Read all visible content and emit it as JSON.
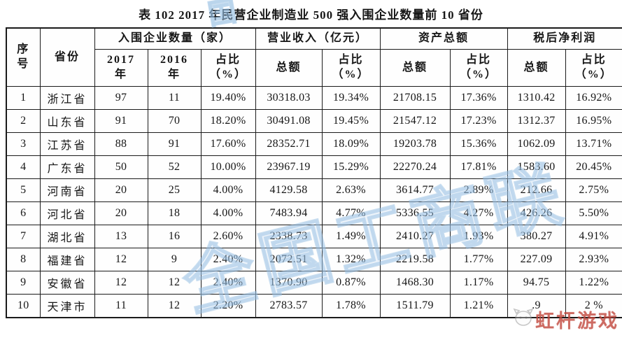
{
  "title": "表 102  2017 年民营企业制造业 500 强入围企业数量前 10 省份",
  "table": {
    "header_groups": {
      "index": "序\n号",
      "province": "省份",
      "count": "入围企业数量（家）",
      "revenue": "营业收入（亿元）",
      "assets": "资产总额",
      "profit": "税后净利润"
    },
    "subheaders": {
      "y2017": "2017\n年",
      "y2016": "2016\n年",
      "share": "占比\n（%）",
      "total_a": "总额",
      "total_b": "总额",
      "total_c": "总额"
    },
    "rows": [
      [
        "1",
        "浙江省",
        "97",
        "11",
        "19.40%",
        "30318.03",
        "19.34%",
        "21708.15",
        "17.36%",
        "1310.42",
        "16.92%"
      ],
      [
        "2",
        "山东省",
        "91",
        "70",
        "18.20%",
        "30491.08",
        "19.45%",
        "21547.12",
        "17.23%",
        "1312.37",
        "16.95%"
      ],
      [
        "3",
        "江苏省",
        "88",
        "91",
        "17.60%",
        "28352.71",
        "18.09%",
        "19203.78",
        "15.36%",
        "1062.09",
        "13.71%"
      ],
      [
        "4",
        "广东省",
        "50",
        "52",
        "10.00%",
        "23967.19",
        "15.29%",
        "22270.24",
        "17.81%",
        "1583.60",
        "20.45%"
      ],
      [
        "5",
        "河南省",
        "20",
        "25",
        "4.00%",
        "4129.58",
        "2.63%",
        "3614.77",
        "2.89%",
        "212.66",
        "2.75%"
      ],
      [
        "6",
        "河北省",
        "20",
        "18",
        "4.00%",
        "7483.94",
        "4.77%",
        "5336.55",
        "4.27%",
        "426.26",
        "5.50%"
      ],
      [
        "7",
        "湖北省",
        "13",
        "16",
        "2.60%",
        "2338.73",
        "1.49%",
        "2410.27",
        "1.93%",
        "380.27",
        "4.91%"
      ],
      [
        "8",
        "福建省",
        "12",
        "9",
        "2.40%",
        "2072.51",
        "1.32%",
        "2219.58",
        "1.77%",
        "227.09",
        "2.93%"
      ],
      [
        "9",
        "安徽省",
        "12",
        "12",
        "2.40%",
        "1370.90",
        "0.87%",
        "1468.30",
        "1.17%",
        "94.75",
        "1.22%"
      ],
      [
        "10",
        "天津市",
        "11",
        "12",
        "2.20%",
        "2783.57",
        "1.78%",
        "1511.79",
        "1.21%",
        ".9",
        "2 %"
      ]
    ]
  },
  "watermarks": {
    "blue_text": "全国工商联",
    "blue_color": "#94bee2",
    "blue_top_text": "国",
    "red_text": "虹杆游戏",
    "red_color": "#c0463c",
    "red_icon": "cat-face-icon"
  }
}
